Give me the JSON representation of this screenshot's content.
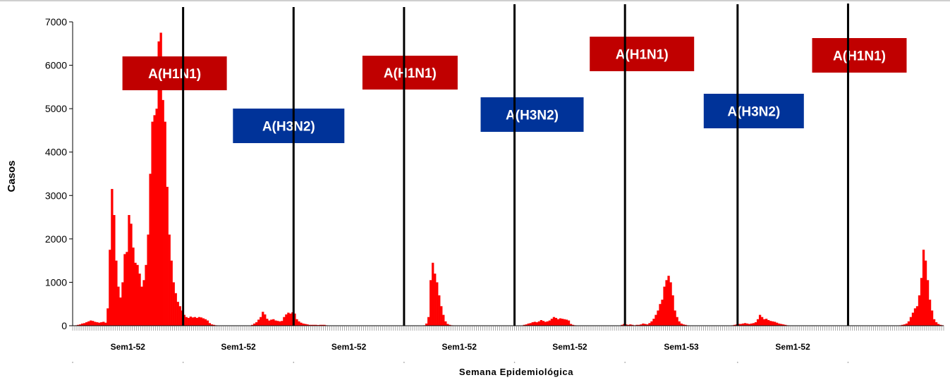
{
  "chart_data": {
    "type": "bar",
    "title": "",
    "xlabel": "Semana Epidemiológica",
    "ylabel": "Casos",
    "ylim": [
      0,
      7000
    ],
    "yticks": [
      0,
      1000,
      2000,
      3000,
      4000,
      5000,
      6000,
      7000
    ],
    "grid": false,
    "legend": "none",
    "series_color": "#ff0000",
    "season_labels": [
      "Sem1-52",
      "Sem1-52",
      "Sem1-52",
      "Sem1-52",
      "Sem1-52",
      "Sem1-53",
      "Sem1-52"
    ],
    "season_weeks": [
      52,
      52,
      52,
      52,
      52,
      53,
      52
    ],
    "annotations": [
      {
        "text": "A(H1N1)",
        "color": "#c00000",
        "season": 1
      },
      {
        "text": "A(H3N2)",
        "color": "#003399",
        "season": 2
      },
      {
        "text": "A(H1N1)",
        "color": "#c00000",
        "season": 3
      },
      {
        "text": "A(H3N2)",
        "color": "#003399",
        "season": 4
      },
      {
        "text": "A(H1N1)",
        "color": "#c00000",
        "season": 5
      },
      {
        "text": "A(H3N2)",
        "color": "#003399",
        "season": 6
      },
      {
        "text": "A(H1N1)",
        "color": "#c00000",
        "season": 7
      }
    ],
    "values": [
      0,
      10,
      20,
      30,
      50,
      60,
      80,
      100,
      120,
      110,
      90,
      80,
      70,
      80,
      90,
      70,
      400,
      1750,
      3150,
      2550,
      1500,
      900,
      650,
      1000,
      1650,
      1700,
      2550,
      2350,
      1800,
      1450,
      1400,
      1200,
      900,
      1050,
      1400,
      2100,
      3500,
      4700,
      4850,
      5000,
      6550,
      6750,
      5200,
      4700,
      3200,
      2100,
      1500,
      1000,
      750,
      550,
      450,
      350,
      250,
      200,
      180,
      210,
      190,
      200,
      180,
      200,
      190,
      170,
      150,
      120,
      60,
      30,
      20,
      10,
      5,
      5,
      5,
      5,
      5,
      5,
      5,
      5,
      5,
      5,
      5,
      5,
      5,
      5,
      5,
      5,
      20,
      50,
      80,
      140,
      200,
      320,
      260,
      160,
      120,
      140,
      150,
      120,
      110,
      100,
      110,
      200,
      260,
      300,
      280,
      310,
      280,
      150,
      100,
      70,
      50,
      40,
      30,
      20,
      20,
      20,
      20,
      15,
      20,
      20,
      20,
      10,
      5,
      5,
      5,
      5,
      5,
      5,
      5,
      5,
      5,
      5,
      5,
      5,
      5,
      5,
      5,
      5,
      5,
      5,
      5,
      5,
      5,
      5,
      5,
      5,
      5,
      5,
      5,
      5,
      5,
      5,
      5,
      5,
      5,
      5,
      5,
      5,
      5,
      5,
      5,
      5,
      5,
      5,
      5,
      5,
      5,
      10,
      50,
      200,
      1050,
      1450,
      1200,
      1000,
      700,
      450,
      250,
      100,
      40,
      20,
      10,
      5,
      5,
      5,
      5,
      5,
      5,
      5,
      5,
      5,
      5,
      5,
      5,
      5,
      5,
      5,
      5,
      5,
      5,
      5,
      5,
      5,
      5,
      5,
      5,
      5,
      5,
      5,
      5,
      5,
      5,
      5,
      5,
      5,
      20,
      30,
      50,
      60,
      80,
      90,
      80,
      100,
      130,
      110,
      90,
      100,
      120,
      160,
      200,
      180,
      150,
      170,
      160,
      150,
      140,
      120,
      40,
      20,
      10,
      5,
      5,
      5,
      5,
      5,
      5,
      5,
      5,
      5,
      5,
      5,
      5,
      5,
      5,
      5,
      5,
      5,
      5,
      5,
      5,
      5,
      20,
      40,
      30,
      20,
      30,
      20,
      10,
      20,
      20,
      30,
      50,
      40,
      30,
      60,
      100,
      160,
      250,
      350,
      500,
      600,
      900,
      1050,
      1150,
      1000,
      700,
      350,
      200,
      100,
      50,
      30,
      20,
      10,
      5,
      5,
      5,
      5,
      5,
      5,
      5,
      5,
      5,
      5,
      5,
      5,
      5,
      5,
      5,
      5,
      5,
      5,
      5,
      5,
      10,
      20,
      30,
      40,
      40,
      50,
      60,
      50,
      40,
      50,
      60,
      80,
      150,
      250,
      200,
      150,
      160,
      130,
      110,
      100,
      90,
      70,
      50,
      40,
      30,
      20,
      10,
      5,
      5,
      5,
      5,
      5,
      5,
      5,
      5,
      5,
      5,
      5,
      5,
      5,
      5,
      5,
      5,
      5,
      5,
      5,
      5,
      5,
      5,
      5,
      5,
      5,
      5,
      5,
      5,
      5,
      5,
      5,
      5,
      5,
      5,
      5,
      5,
      5,
      5,
      5,
      5,
      5,
      5,
      5,
      5,
      5,
      5,
      5,
      5,
      5,
      5,
      5,
      5,
      10,
      20,
      30,
      50,
      100,
      200,
      300,
      400,
      450,
      700,
      1100,
      1750,
      1500,
      1050,
      600,
      350,
      150,
      80,
      40,
      20,
      10
    ]
  }
}
